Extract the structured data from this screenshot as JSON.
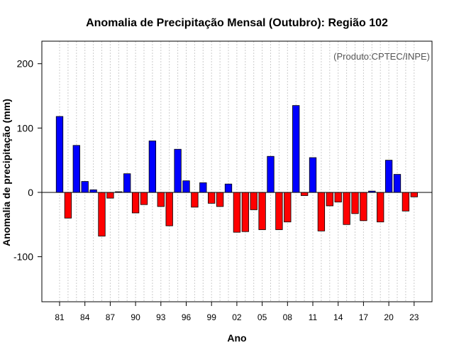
{
  "chart_data": {
    "type": "bar",
    "title": "Anomalia de Precipitação Mensal (Outubro): Região 102",
    "xlabel": "Ano",
    "ylabel": "Anomalia de precipitação (mm)",
    "annotation": "(Produto:CPTEC/INPE)",
    "ylim": [
      -170,
      235
    ],
    "yticks": [
      -100,
      0,
      100,
      200
    ],
    "grid": true,
    "positive_color": "#0000ff",
    "negative_color": "#ff0000",
    "x": [
      "81",
      "82",
      "83",
      "84",
      "85",
      "86",
      "87",
      "88",
      "89",
      "90",
      "91",
      "92",
      "93",
      "94",
      "95",
      "96",
      "97",
      "98",
      "99",
      "00",
      "01",
      "02",
      "03",
      "04",
      "05",
      "06",
      "07",
      "08",
      "09",
      "10",
      "11",
      "12",
      "13",
      "14",
      "15",
      "16",
      "17",
      "18",
      "19",
      "20",
      "21",
      "22",
      "23"
    ],
    "xtick_labels": [
      "81",
      "84",
      "87",
      "90",
      "93",
      "96",
      "99",
      "02",
      "05",
      "08",
      "11",
      "14",
      "17",
      "20",
      "23"
    ],
    "values": [
      118,
      -40,
      73,
      17,
      4,
      -68,
      -9,
      1,
      29,
      -32,
      -19,
      80,
      -22,
      -52,
      67,
      18,
      -23,
      15,
      -17,
      -22,
      13,
      -62,
      -61,
      -27,
      -58,
      56,
      -58,
      -46,
      135,
      -5,
      54,
      -60,
      -21,
      -15,
      -50,
      -33,
      -44,
      2,
      -46,
      50,
      28,
      -29,
      -7
    ]
  }
}
